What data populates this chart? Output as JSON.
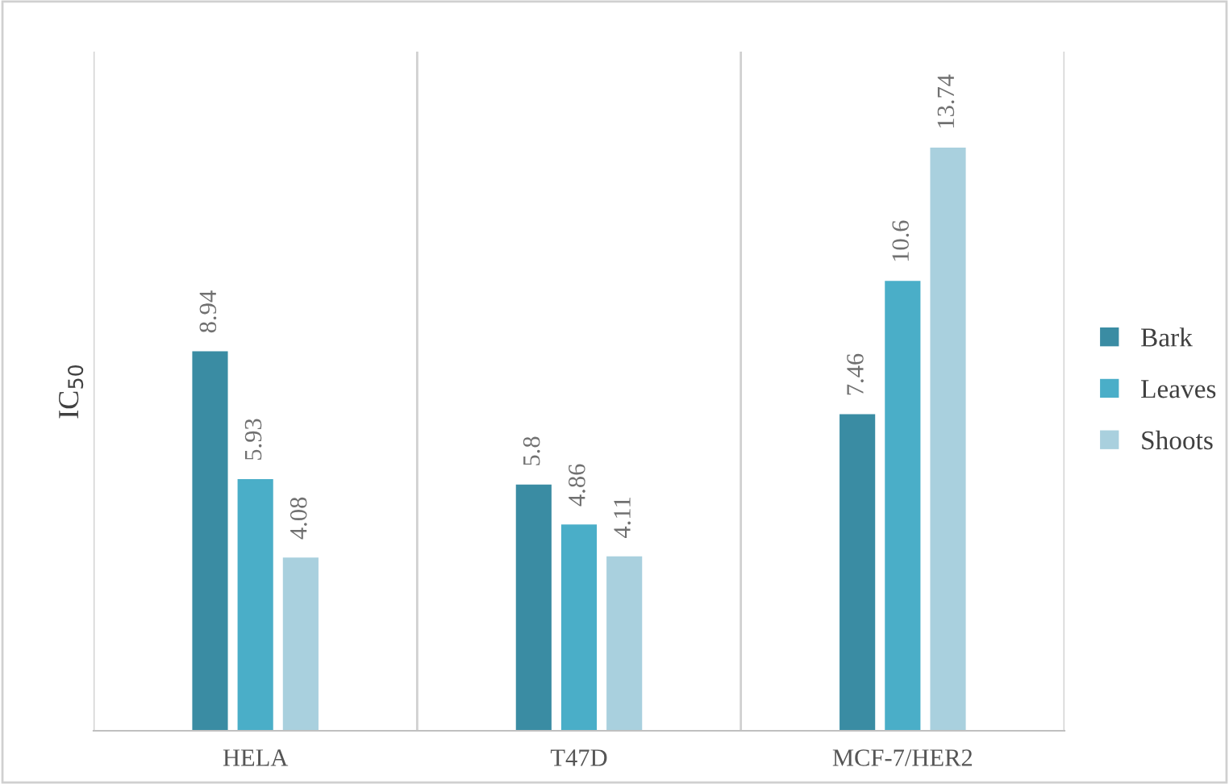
{
  "chart_data": {
    "type": "bar",
    "ylabel": "IC$_{50}$",
    "categories": [
      "HELA",
      "T47D",
      "MCF-7/HER2"
    ],
    "series": [
      {
        "name": "Bark",
        "color": "#3a8ca3",
        "values": [
          8.94,
          5.8,
          7.46
        ]
      },
      {
        "name": "Leaves",
        "color": "#4aaec8",
        "values": [
          5.93,
          4.86,
          10.6
        ]
      },
      {
        "name": "Shoots",
        "color": "#a9d0de",
        "values": [
          4.08,
          4.11,
          13.74
        ]
      }
    ],
    "ylim": [
      0,
      16
    ],
    "data_labels": true,
    "grid": "x",
    "legend": "right",
    "tick_labels": "x"
  }
}
